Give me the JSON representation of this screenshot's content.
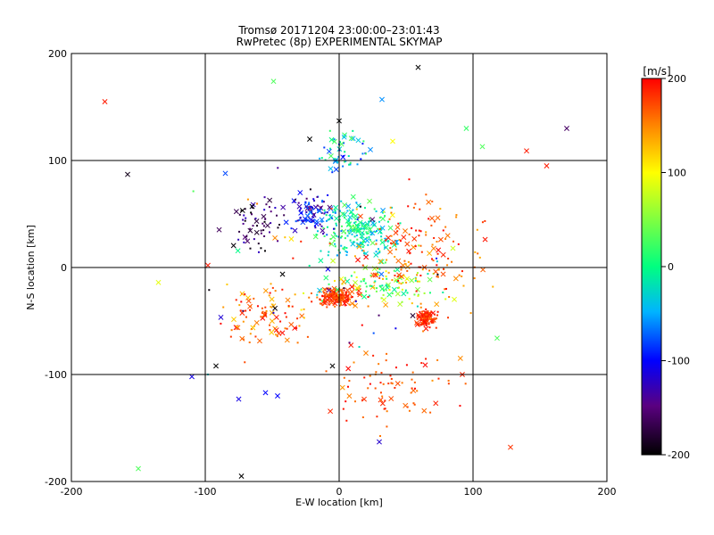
{
  "chart_data": {
    "type": "scatter",
    "title": "Tromsø 20171204 23:00:00–23:01:43",
    "subtitle": "RwPretec (8p) EXPERIMENTAL SKYMAP",
    "xlabel": "E-W location [km]",
    "ylabel": "N-S location [km]",
    "xlim": [
      -200,
      200
    ],
    "ylim": [
      -200,
      200
    ],
    "xticks": [
      -200,
      -100,
      0,
      100,
      200
    ],
    "yticks": [
      -200,
      -100,
      0,
      100,
      200
    ],
    "grid_x": [
      -100,
      0,
      100
    ],
    "grid_y": [
      -100,
      0,
      100
    ],
    "colorbar": {
      "label": "[m/s]",
      "min": -200,
      "max": 200,
      "ticks": [
        -200,
        -100,
        0,
        100,
        200
      ],
      "colors": [
        "#000000",
        "#5a0080",
        "#0000ff",
        "#00b4ff",
        "#00ff80",
        "#ffff00",
        "#ff8000",
        "#ff0000"
      ]
    },
    "marker_legend": "dot = point echo, x = strong echo",
    "clusters": [
      {
        "cx": -2,
        "cy": -28,
        "sx": 12,
        "sy": 7,
        "n": 160,
        "v": [
          150,
          200
        ]
      },
      {
        "cx": 65,
        "cy": -48,
        "sx": 6,
        "sy": 7,
        "n": 90,
        "v": [
          160,
          200
        ]
      },
      {
        "cx": 30,
        "cy": -15,
        "sx": 35,
        "sy": 14,
        "n": 110,
        "v": [
          -20,
          140
        ]
      },
      {
        "cx": 15,
        "cy": 35,
        "sx": 22,
        "sy": 20,
        "n": 200,
        "v": [
          -60,
          40
        ]
      },
      {
        "cx": -20,
        "cy": 50,
        "sx": 12,
        "sy": 15,
        "n": 90,
        "v": [
          -160,
          -60
        ]
      },
      {
        "cx": 5,
        "cy": 110,
        "sx": 15,
        "sy": 15,
        "n": 50,
        "v": [
          -100,
          40
        ]
      },
      {
        "cx": 60,
        "cy": 10,
        "sx": 45,
        "sy": 45,
        "n": 150,
        "v": [
          130,
          200
        ]
      },
      {
        "cx": -55,
        "cy": -45,
        "sx": 25,
        "sy": 25,
        "n": 90,
        "v": [
          120,
          200
        ]
      },
      {
        "cx": -60,
        "cy": 40,
        "sx": 20,
        "sy": 25,
        "n": 60,
        "v": [
          -200,
          -120
        ]
      },
      {
        "cx": 40,
        "cy": -110,
        "sx": 35,
        "sy": 30,
        "n": 80,
        "v": [
          140,
          200
        ]
      },
      {
        "cx": 0,
        "cy": 0,
        "sx": 90,
        "sy": 85,
        "n": 70,
        "v": [
          -200,
          200
        ]
      }
    ],
    "strong_echoes": [
      {
        "x": -175,
        "y": 155,
        "v": 190
      },
      {
        "x": -158,
        "y": 87,
        "v": -190
      },
      {
        "x": -135,
        "y": -14,
        "v": 90
      },
      {
        "x": -110,
        "y": -102,
        "v": -110
      },
      {
        "x": -75,
        "y": -123,
        "v": -110
      },
      {
        "x": -55,
        "y": -117,
        "v": -100
      },
      {
        "x": -46,
        "y": -120,
        "v": -100
      },
      {
        "x": -150,
        "y": -188,
        "v": 30
      },
      {
        "x": -73,
        "y": -195,
        "v": -200
      },
      {
        "x": -49,
        "y": 174,
        "v": 30
      },
      {
        "x": 59,
        "y": 187,
        "v": -200
      },
      {
        "x": 32,
        "y": 157,
        "v": -60
      },
      {
        "x": 95,
        "y": 130,
        "v": 20
      },
      {
        "x": 107,
        "y": 113,
        "v": 30
      },
      {
        "x": 140,
        "y": 109,
        "v": 190
      },
      {
        "x": 170,
        "y": 130,
        "v": -160
      },
      {
        "x": 155,
        "y": 95,
        "v": 190
      },
      {
        "x": 128,
        "y": -168,
        "v": 180
      },
      {
        "x": 118,
        "y": -66,
        "v": 30
      },
      {
        "x": 30,
        "y": -163,
        "v": -120
      },
      {
        "x": 92,
        "y": -100,
        "v": 185
      },
      {
        "x": 0,
        "y": 137,
        "v": -200
      },
      {
        "x": -22,
        "y": 120,
        "v": -200
      },
      {
        "x": -98,
        "y": 2,
        "v": 190
      },
      {
        "x": -85,
        "y": 88,
        "v": -80
      },
      {
        "x": 40,
        "y": 118,
        "v": 100
      },
      {
        "x": 85,
        "y": 18,
        "v": 80
      },
      {
        "x": -65,
        "y": 57,
        "v": -200
      },
      {
        "x": -92,
        "y": -92,
        "v": -200
      },
      {
        "x": -5,
        "y": -92,
        "v": -200
      },
      {
        "x": 55,
        "y": -45,
        "v": -180
      },
      {
        "x": 20,
        "y": -80,
        "v": 150
      }
    ]
  }
}
